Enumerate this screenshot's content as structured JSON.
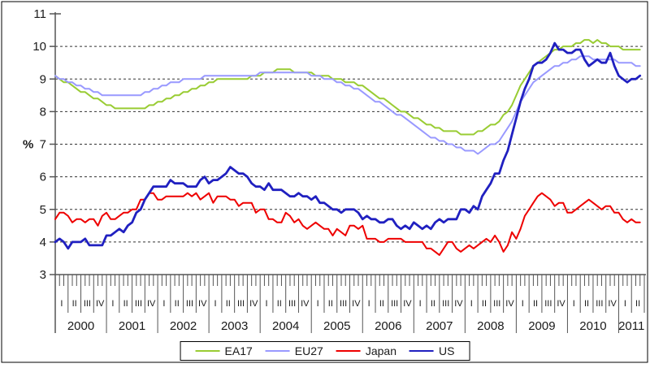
{
  "chart_data": {
    "type": "line",
    "title": "",
    "ylabel": "%",
    "y_min": 3,
    "y_max": 11,
    "y_ticks": [
      3,
      4,
      5,
      6,
      7,
      8,
      9,
      10,
      11
    ],
    "grid_values": [
      4,
      5,
      6,
      7,
      8,
      9,
      10
    ],
    "grid_style": "dashed",
    "x_frequency": "monthly",
    "x_start": "2000-01",
    "x_end": "2011-06",
    "n_points": 138,
    "quarter_labels": [
      "I",
      "II",
      "III",
      "IV"
    ],
    "years": [
      "2000",
      "2001",
      "2002",
      "2003",
      "2004",
      "2005",
      "2006",
      "2007",
      "2008",
      "2009",
      "2010",
      "2011"
    ],
    "legend_position": "bottom-center",
    "colors": {
      "grid": "#333333",
      "axis": "#555555",
      "text": "#1a1a1a",
      "border": "#000000"
    },
    "series": [
      {
        "name": "EA17",
        "color": "#99CC33",
        "line_width": 2,
        "values": [
          9.1,
          9.0,
          8.9,
          8.9,
          8.8,
          8.7,
          8.6,
          8.6,
          8.5,
          8.4,
          8.4,
          8.3,
          8.2,
          8.2,
          8.1,
          8.1,
          8.1,
          8.1,
          8.1,
          8.1,
          8.1,
          8.1,
          8.2,
          8.2,
          8.3,
          8.3,
          8.4,
          8.4,
          8.5,
          8.5,
          8.6,
          8.6,
          8.7,
          8.7,
          8.8,
          8.8,
          8.9,
          8.9,
          9.0,
          9.0,
          9.0,
          9.0,
          9.0,
          9.0,
          9.0,
          9.0,
          9.1,
          9.1,
          9.1,
          9.2,
          9.2,
          9.2,
          9.3,
          9.3,
          9.3,
          9.3,
          9.2,
          9.2,
          9.2,
          9.2,
          9.2,
          9.1,
          9.1,
          9.1,
          9.1,
          9.0,
          9.0,
          9.0,
          8.9,
          8.9,
          8.9,
          8.8,
          8.8,
          8.7,
          8.6,
          8.5,
          8.4,
          8.4,
          8.3,
          8.2,
          8.1,
          8.0,
          8.0,
          7.9,
          7.8,
          7.8,
          7.7,
          7.6,
          7.6,
          7.5,
          7.5,
          7.4,
          7.4,
          7.4,
          7.4,
          7.3,
          7.3,
          7.3,
          7.3,
          7.4,
          7.4,
          7.5,
          7.6,
          7.6,
          7.7,
          7.9,
          8.0,
          8.2,
          8.5,
          8.8,
          9.0,
          9.2,
          9.4,
          9.5,
          9.6,
          9.7,
          9.8,
          9.9,
          9.9,
          10.0,
          10.0,
          10.0,
          10.1,
          10.1,
          10.2,
          10.2,
          10.1,
          10.2,
          10.1,
          10.1,
          10.0,
          10.0,
          10.0,
          9.9,
          9.9,
          9.9,
          9.9,
          9.9
        ]
      },
      {
        "name": "EU27",
        "color": "#9999FF",
        "line_width": 2,
        "values": [
          9.1,
          9.0,
          9.0,
          8.9,
          8.9,
          8.8,
          8.8,
          8.7,
          8.7,
          8.6,
          8.6,
          8.5,
          8.5,
          8.5,
          8.5,
          8.5,
          8.5,
          8.5,
          8.5,
          8.5,
          8.5,
          8.6,
          8.6,
          8.7,
          8.7,
          8.8,
          8.8,
          8.9,
          8.9,
          8.9,
          9.0,
          9.0,
          9.0,
          9.0,
          9.0,
          9.1,
          9.1,
          9.1,
          9.1,
          9.1,
          9.1,
          9.1,
          9.1,
          9.1,
          9.1,
          9.1,
          9.1,
          9.1,
          9.2,
          9.2,
          9.2,
          9.2,
          9.2,
          9.2,
          9.2,
          9.2,
          9.2,
          9.2,
          9.2,
          9.2,
          9.1,
          9.1,
          9.1,
          9.0,
          9.0,
          9.0,
          8.9,
          8.9,
          8.8,
          8.8,
          8.7,
          8.7,
          8.6,
          8.5,
          8.4,
          8.3,
          8.3,
          8.2,
          8.1,
          8.0,
          7.9,
          7.9,
          7.8,
          7.7,
          7.6,
          7.5,
          7.4,
          7.3,
          7.2,
          7.2,
          7.1,
          7.1,
          7.0,
          7.0,
          6.9,
          6.9,
          6.8,
          6.8,
          6.8,
          6.7,
          6.8,
          6.9,
          7.0,
          7.0,
          7.1,
          7.3,
          7.5,
          7.7,
          8.0,
          8.3,
          8.5,
          8.7,
          8.9,
          9.0,
          9.1,
          9.2,
          9.3,
          9.4,
          9.4,
          9.5,
          9.5,
          9.6,
          9.6,
          9.7,
          9.7,
          9.7,
          9.6,
          9.6,
          9.6,
          9.6,
          9.6,
          9.6,
          9.5,
          9.5,
          9.5,
          9.5,
          9.4,
          9.4
        ]
      },
      {
        "name": "Japan",
        "color": "#EE0000",
        "line_width": 2,
        "values": [
          4.7,
          4.9,
          4.9,
          4.8,
          4.6,
          4.7,
          4.7,
          4.6,
          4.7,
          4.7,
          4.5,
          4.8,
          4.9,
          4.7,
          4.7,
          4.8,
          4.9,
          4.9,
          5.0,
          5.0,
          5.3,
          5.3,
          5.5,
          5.5,
          5.3,
          5.3,
          5.4,
          5.4,
          5.4,
          5.4,
          5.4,
          5.5,
          5.4,
          5.5,
          5.3,
          5.4,
          5.5,
          5.2,
          5.4,
          5.4,
          5.4,
          5.3,
          5.3,
          5.1,
          5.2,
          5.2,
          5.2,
          4.9,
          5.0,
          5.0,
          4.7,
          4.7,
          4.6,
          4.6,
          4.9,
          4.8,
          4.6,
          4.7,
          4.5,
          4.4,
          4.5,
          4.6,
          4.5,
          4.4,
          4.4,
          4.2,
          4.4,
          4.3,
          4.2,
          4.5,
          4.5,
          4.4,
          4.5,
          4.1,
          4.1,
          4.1,
          4.0,
          4.0,
          4.1,
          4.1,
          4.1,
          4.1,
          4.0,
          4.0,
          4.0,
          4.0,
          4.0,
          3.8,
          3.8,
          3.7,
          3.6,
          3.8,
          4.0,
          4.0,
          3.8,
          3.7,
          3.8,
          3.9,
          3.8,
          3.9,
          4.0,
          4.1,
          4.0,
          4.2,
          4.0,
          3.7,
          3.9,
          4.3,
          4.1,
          4.4,
          4.8,
          5.0,
          5.2,
          5.4,
          5.5,
          5.4,
          5.3,
          5.1,
          5.2,
          5.2,
          4.9,
          4.9,
          5.0,
          5.1,
          5.2,
          5.3,
          5.2,
          5.1,
          5.0,
          5.1,
          5.1,
          4.9,
          4.9,
          4.7,
          4.6,
          4.7,
          4.6,
          4.6
        ]
      },
      {
        "name": "US",
        "color": "#2020C0",
        "line_width": 2.8,
        "values": [
          4.0,
          4.1,
          4.0,
          3.8,
          4.0,
          4.0,
          4.0,
          4.1,
          3.9,
          3.9,
          3.9,
          3.9,
          4.2,
          4.2,
          4.3,
          4.4,
          4.3,
          4.5,
          4.6,
          4.9,
          5.0,
          5.3,
          5.5,
          5.7,
          5.7,
          5.7,
          5.7,
          5.9,
          5.8,
          5.8,
          5.8,
          5.7,
          5.7,
          5.7,
          5.9,
          6.0,
          5.8,
          5.9,
          5.9,
          6.0,
          6.1,
          6.3,
          6.2,
          6.1,
          6.1,
          6.0,
          5.8,
          5.7,
          5.7,
          5.6,
          5.8,
          5.6,
          5.6,
          5.6,
          5.5,
          5.4,
          5.4,
          5.5,
          5.4,
          5.4,
          5.3,
          5.4,
          5.2,
          5.2,
          5.1,
          5.0,
          5.0,
          4.9,
          5.0,
          5.0,
          5.0,
          4.9,
          4.7,
          4.8,
          4.7,
          4.7,
          4.6,
          4.6,
          4.7,
          4.7,
          4.5,
          4.4,
          4.5,
          4.4,
          4.6,
          4.5,
          4.4,
          4.5,
          4.4,
          4.6,
          4.7,
          4.6,
          4.7,
          4.7,
          4.7,
          5.0,
          5.0,
          4.9,
          5.1,
          5.0,
          5.4,
          5.6,
          5.8,
          6.1,
          6.1,
          6.5,
          6.8,
          7.3,
          7.8,
          8.3,
          8.7,
          9.0,
          9.4,
          9.5,
          9.5,
          9.6,
          9.8,
          10.1,
          9.9,
          9.9,
          9.8,
          9.8,
          9.9,
          9.9,
          9.6,
          9.4,
          9.5,
          9.6,
          9.5,
          9.5,
          9.8,
          9.4,
          9.1,
          9.0,
          8.9,
          9.0,
          9.0,
          9.1
        ]
      }
    ]
  }
}
